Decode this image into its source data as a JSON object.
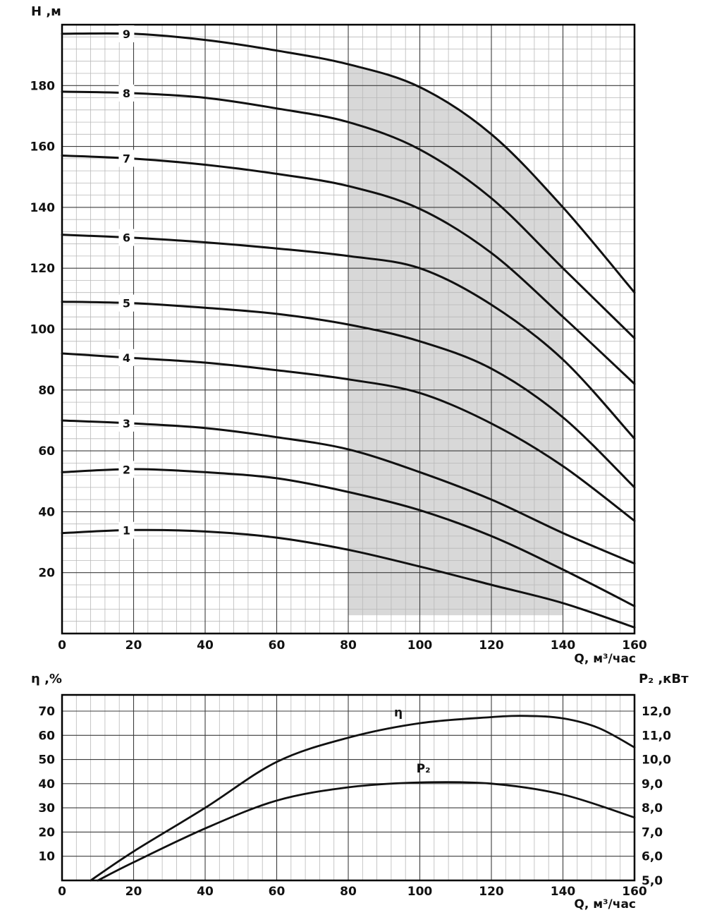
{
  "figure": {
    "background": "#ffffff",
    "colors": {
      "curve": "#111111",
      "grid_minor": "#b8b8b8",
      "grid_major": "#3c3c3c",
      "axis_border": "#000000",
      "zone_fill": "#d8d8d8",
      "text": "#111111"
    }
  },
  "chart_data": [
    {
      "type": "line",
      "id": "head-capacity",
      "title": "",
      "ylabel": "H ,м",
      "xlabel": "Q, м³/час",
      "xlim": [
        0,
        160
      ],
      "ylim": [
        0,
        200
      ],
      "grid": true,
      "x_major_ticks": [
        0,
        20,
        40,
        60,
        80,
        100,
        120,
        140,
        160
      ],
      "x_tick_labels": [
        "0",
        "20",
        "40",
        "60",
        "80",
        "100",
        "120",
        "140",
        "160"
      ],
      "y_major_ticks": [
        20,
        40,
        60,
        80,
        100,
        120,
        140,
        160,
        180
      ],
      "x_minor_step": 4,
      "y_minor_step": 4,
      "series_label_q": 18,
      "x": [
        0,
        20,
        40,
        60,
        80,
        100,
        120,
        140,
        160
      ],
      "series": [
        {
          "name": "1",
          "values": [
            33,
            34,
            33.5,
            31.5,
            27.5,
            22,
            16,
            10,
            2
          ]
        },
        {
          "name": "2",
          "values": [
            53,
            54,
            53,
            51,
            46.5,
            40.5,
            32,
            21,
            9
          ]
        },
        {
          "name": "3",
          "values": [
            70,
            69,
            67.5,
            64.5,
            60.5,
            53,
            44,
            33,
            23
          ]
        },
        {
          "name": "4",
          "values": [
            92,
            90.5,
            89,
            86.5,
            83.5,
            79,
            69,
            55,
            37
          ]
        },
        {
          "name": "5",
          "values": [
            109,
            108.5,
            107,
            105,
            101.5,
            96,
            87,
            71,
            48
          ]
        },
        {
          "name": "6",
          "values": [
            131,
            130,
            128.5,
            126.5,
            124,
            120,
            108,
            90,
            64
          ]
        },
        {
          "name": "7",
          "values": [
            157,
            156,
            154,
            151,
            147,
            139.5,
            125,
            104,
            82
          ]
        },
        {
          "name": "8",
          "values": [
            178,
            177.5,
            176,
            172.5,
            168,
            159,
            143,
            120,
            97
          ]
        },
        {
          "name": "9",
          "values": [
            197,
            197,
            195,
            191.5,
            187,
            179.5,
            164,
            140,
            112
          ]
        }
      ],
      "recommended_zone": {
        "q": [
          80,
          90,
          100,
          110,
          120,
          130,
          140
        ],
        "h_top": [
          187,
          184,
          179.5,
          172.5,
          164,
          152.5,
          140
        ],
        "h_bottom": 6
      }
    },
    {
      "type": "line",
      "id": "efficiency-power",
      "title": "",
      "ylabel_left": "η ,%",
      "ylabel_right": "P₂ ,кВт",
      "xlabel": "Q, м³/час",
      "xlim": [
        0,
        160
      ],
      "ylim_left": [
        0,
        76.7
      ],
      "ylim_right": [
        5.0,
        12.67
      ],
      "grid": true,
      "x_major_ticks": [
        0,
        20,
        40,
        60,
        80,
        100,
        120,
        140,
        160
      ],
      "x_tick_labels": [
        "0",
        "20",
        "40",
        "60",
        "80",
        "100",
        "120",
        "140",
        "160"
      ],
      "y_left_ticks": [
        10,
        20,
        30,
        40,
        50,
        60,
        70
      ],
      "y_right_ticks": [
        {
          "value": 12.0,
          "label": "12,0"
        },
        {
          "value": 11.0,
          "label": "11,0"
        },
        {
          "value": 10.0,
          "label": "10,0"
        },
        {
          "value": 9.0,
          "label": "9,0"
        },
        {
          "value": 8.0,
          "label": "8,0"
        },
        {
          "value": 7.0,
          "label": "7,0"
        },
        {
          "value": 6.0,
          "label": "6,0"
        },
        {
          "value": 5.0,
          "label": "5,0"
        }
      ],
      "x_minor_step": 4,
      "series": [
        {
          "name": "η",
          "axis": "left",
          "x": [
            8,
            20,
            40,
            60,
            80,
            100,
            120,
            130,
            140,
            150,
            160
          ],
          "values": [
            0,
            12,
            30,
            49,
            59,
            65,
            67.5,
            68,
            67,
            63,
            55
          ],
          "label": {
            "q": 94,
            "dy": -16
          }
        },
        {
          "name": "P₂",
          "axis": "right",
          "x": [
            10,
            20,
            40,
            60,
            80,
            100,
            120,
            140,
            160
          ],
          "values": [
            5.0,
            5.75,
            7.15,
            8.3,
            8.85,
            9.05,
            9.0,
            8.55,
            7.6
          ],
          "label": {
            "q": 101,
            "dy": -14
          }
        }
      ]
    }
  ]
}
